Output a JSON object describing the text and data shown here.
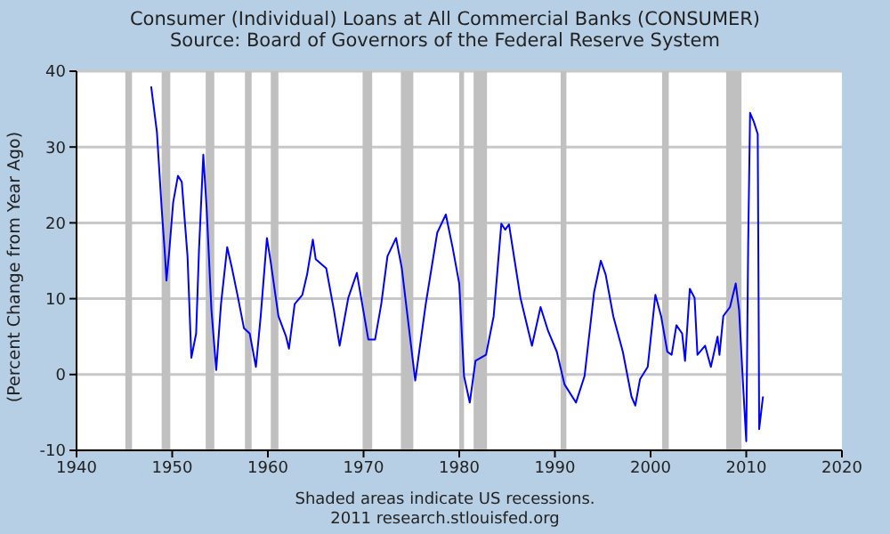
{
  "chart_data": {
    "type": "line",
    "title": "Consumer (Individual) Loans at All Commercial Banks (CONSUMER)",
    "subtitle": "Source: Board of Governors of the Federal Reserve System",
    "ylabel": "(Percent Change from Year Ago)",
    "annotations": [
      "Shaded areas indicate US recessions.",
      "2011 research.stlouisfed.org"
    ],
    "xlim": [
      1940,
      2020
    ],
    "xticks": [
      1940,
      1950,
      1960,
      1970,
      1980,
      1990,
      2000,
      2010,
      2020
    ],
    "ylim": [
      -10,
      40
    ],
    "yticks": [
      -10,
      0,
      10,
      20,
      30,
      40
    ],
    "grid": "y",
    "marker": "none",
    "line_style": "solid",
    "bands": [
      {
        "axis": "x",
        "from": 1945.1,
        "to": 1945.8,
        "color": "#c0c0c0"
      },
      {
        "axis": "x",
        "from": 1948.9,
        "to": 1949.8,
        "color": "#c0c0c0"
      },
      {
        "axis": "x",
        "from": 1953.5,
        "to": 1954.4,
        "color": "#c0c0c0"
      },
      {
        "axis": "x",
        "from": 1957.6,
        "to": 1958.3,
        "color": "#c0c0c0"
      },
      {
        "axis": "x",
        "from": 1960.3,
        "to": 1961.1,
        "color": "#c0c0c0"
      },
      {
        "axis": "x",
        "from": 1969.9,
        "to": 1970.9,
        "color": "#c0c0c0"
      },
      {
        "axis": "x",
        "from": 1973.9,
        "to": 1975.2,
        "color": "#c0c0c0"
      },
      {
        "axis": "x",
        "from": 1980.0,
        "to": 1980.5,
        "color": "#c0c0c0"
      },
      {
        "axis": "x",
        "from": 1981.5,
        "to": 1982.9,
        "color": "#c0c0c0"
      },
      {
        "axis": "x",
        "from": 1990.6,
        "to": 1991.2,
        "color": "#c0c0c0"
      },
      {
        "axis": "x",
        "from": 2001.2,
        "to": 2001.9,
        "color": "#c0c0c0"
      },
      {
        "axis": "x",
        "from": 2007.9,
        "to": 2009.5,
        "color": "#c0c0c0"
      }
    ],
    "series": [
      {
        "color": "#0000ff",
        "x": [
          1947.8,
          1948.4,
          1948.9,
          1949.25,
          1949.4,
          1949.7,
          1950.1,
          1950.6,
          1951,
          1951.6,
          1952,
          1952.5,
          1952.8,
          1953.25,
          1953.6,
          1954.1,
          1954.6,
          1955.1,
          1955.75,
          1956.25,
          1956.9,
          1957.5,
          1958.1,
          1958.75,
          1959.25,
          1959.9,
          1960.3,
          1961.1,
          1961.9,
          1962.2,
          1962.8,
          1963.6,
          1964.1,
          1964.7,
          1965,
          1966.1,
          1966.9,
          1967.5,
          1968.4,
          1969.3,
          1970.5,
          1971.2,
          1971.85,
          1972.5,
          1973.4,
          1974,
          1975.4,
          1976.5,
          1977.7,
          1978.6,
          1979.3,
          1980,
          1980.5,
          1981.1,
          1981.7,
          1982.8,
          1983.6,
          1984.4,
          1984.8,
          1985.2,
          1986.4,
          1987.6,
          1988.5,
          1989.3,
          1990.2,
          1991,
          1992.2,
          1993.1,
          1994.1,
          1994.8,
          1995.3,
          1996.1,
          1997.1,
          1998,
          1998.4,
          1998.9,
          1999.7,
          2000.5,
          2001.1,
          2001.75,
          2002.2,
          2002.7,
          2003.3,
          2003.6,
          2004.1,
          2004.6,
          2004.9,
          2005.7,
          2006.3,
          2007,
          2007.2,
          2007.6,
          2008.3,
          2008.9,
          2009.25,
          2009.7,
          2010,
          2010.2,
          2010.4,
          2010.8,
          2011.2,
          2011.3,
          2011.35,
          2011.75
        ],
        "values": [
          38,
          32,
          21.9,
          15.6,
          12.4,
          16.4,
          22.7,
          26.2,
          25.4,
          15.6,
          2.2,
          5.4,
          16.4,
          29,
          21.9,
          8.5,
          0.6,
          9.3,
          16.8,
          14,
          10,
          6.1,
          5.4,
          1,
          7.7,
          18,
          14.8,
          7.7,
          5,
          3.4,
          9.3,
          10.5,
          13.2,
          17.8,
          15.2,
          14,
          8.5,
          3.8,
          10.1,
          13.4,
          4.6,
          4.6,
          9.3,
          15.6,
          18,
          14,
          -0.8,
          9.3,
          18.7,
          21.1,
          16.8,
          12,
          -0.2,
          -3.7,
          1.8,
          2.6,
          7.7,
          19.9,
          19.1,
          19.8,
          10.1,
          3.8,
          8.9,
          5.7,
          3,
          -1.3,
          -3.7,
          -0.2,
          10.9,
          15,
          13.2,
          7.7,
          3,
          -2.9,
          -4.1,
          -0.6,
          1,
          10.5,
          7.7,
          3,
          2.6,
          6.5,
          5.4,
          1.8,
          11.3,
          10.1,
          2.6,
          3.8,
          1,
          5,
          2.6,
          7.7,
          8.9,
          12,
          8.5,
          -2.1,
          -8.8,
          17.2,
          34.5,
          33.3,
          31.7,
          6.9,
          -7.2,
          -2.9
        ]
      }
    ]
  }
}
